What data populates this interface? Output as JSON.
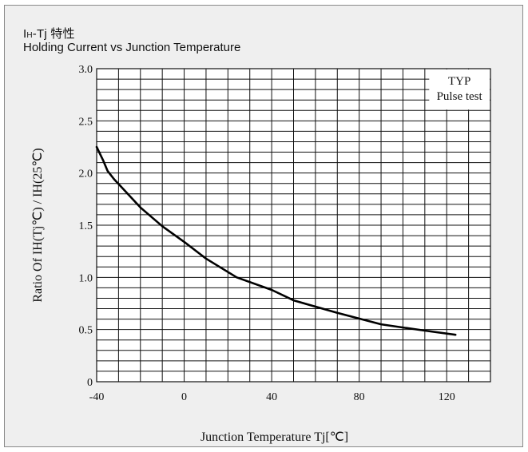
{
  "title": {
    "main": "I",
    "sub": "H",
    "rest": "-Tj 特性",
    "subtitle": "Holding Current vs Junction Temperature"
  },
  "chart_data": {
    "type": "line",
    "title": "Holding Current vs Junction Temperature",
    "xlabel": "Junction Temperature Tj[℃]",
    "ylabel": "Ratio Of IH(Tj℃) / IH(25℃)",
    "xlim": [
      -40,
      140
    ],
    "ylim": [
      0,
      3.0
    ],
    "x_ticks": [
      "-40",
      "0",
      "40",
      "80",
      "120"
    ],
    "y_ticks": [
      "0",
      "0.5",
      "1.0",
      "1.5",
      "2.0",
      "2.5",
      "3.0"
    ],
    "legend": [
      "TYP",
      "Pulse test"
    ],
    "legend_position": "top-right",
    "grid": true,
    "series": [
      {
        "x": [
          -40,
          -37,
          -35,
          -32,
          -28,
          -20,
          -10,
          0,
          10,
          24,
          40,
          50,
          70,
          90,
          100,
          110,
          124
        ],
        "y": [
          2.25,
          2.12,
          2.02,
          1.94,
          1.85,
          1.67,
          1.49,
          1.34,
          1.18,
          1.0,
          0.88,
          0.78,
          0.66,
          0.55,
          0.52,
          0.49,
          0.45
        ]
      }
    ]
  },
  "colors": {
    "background": "#efefef",
    "plot_bg": "#ffffff",
    "grid": "#111111",
    "line": "#000000"
  }
}
